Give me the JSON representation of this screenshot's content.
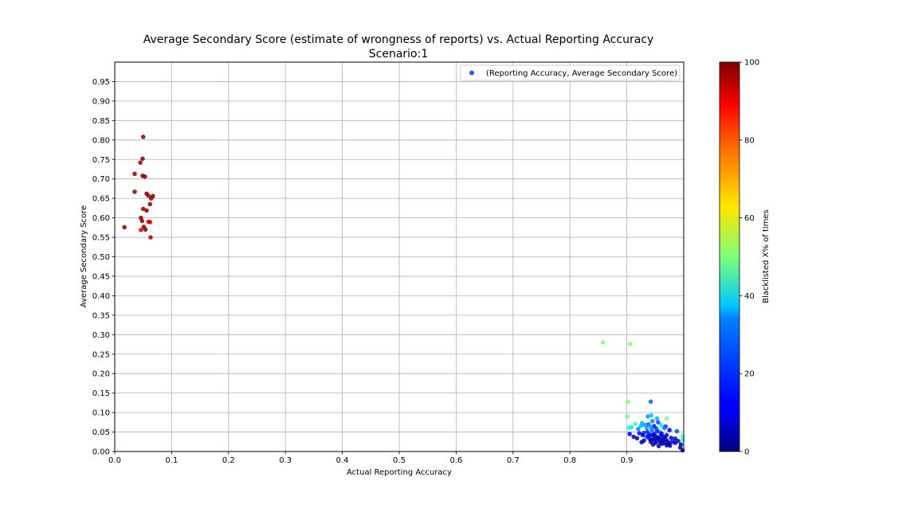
{
  "chart_data": {
    "type": "scatter",
    "title_line1": "Average Secondary Score (estimate of wrongness of reports) vs. Actual Reporting Accuracy",
    "title_line2": "Scenario:1",
    "xlabel": "Actual Reporting Accuracy",
    "ylabel": "Average Secondary Score",
    "xlim": [
      0.0,
      1.0
    ],
    "ylim": [
      0.0,
      1.0
    ],
    "xticks": [
      "0.0",
      "0.1",
      "0.2",
      "0.3",
      "0.4",
      "0.5",
      "0.6",
      "0.7",
      "0.8",
      "0.9"
    ],
    "yticks": [
      "0.00",
      "0.05",
      "0.10",
      "0.15",
      "0.20",
      "0.25",
      "0.30",
      "0.35",
      "0.40",
      "0.45",
      "0.50",
      "0.55",
      "0.60",
      "0.65",
      "0.70",
      "0.75",
      "0.80",
      "0.85",
      "0.90",
      "0.95"
    ],
    "grid": true,
    "legend": {
      "position": "top-right",
      "label": "(Reporting Accuracy, Average Secondary Score)"
    },
    "colorbar": {
      "label": "Blacklisted X% of times",
      "min": 0,
      "max": 100,
      "ticks": [
        "0",
        "20",
        "40",
        "60",
        "80",
        "100"
      ],
      "colormap": "jet"
    },
    "series": [
      {
        "points": [
          [
            0.05,
            0.808,
            99
          ],
          [
            0.049,
            0.752,
            99
          ],
          [
            0.045,
            0.742,
            99
          ],
          [
            0.035,
            0.713,
            99
          ],
          [
            0.049,
            0.708,
            99
          ],
          [
            0.053,
            0.706,
            99
          ],
          [
            0.035,
            0.667,
            99
          ],
          [
            0.056,
            0.662,
            99
          ],
          [
            0.059,
            0.657,
            99
          ],
          [
            0.067,
            0.656,
            99
          ],
          [
            0.064,
            0.65,
            99
          ],
          [
            0.062,
            0.635,
            99
          ],
          [
            0.05,
            0.623,
            99
          ],
          [
            0.056,
            0.619,
            99
          ],
          [
            0.046,
            0.6,
            99
          ],
          [
            0.048,
            0.592,
            99
          ],
          [
            0.059,
            0.59,
            88
          ],
          [
            0.062,
            0.589,
            95
          ],
          [
            0.017,
            0.576,
            99
          ],
          [
            0.051,
            0.577,
            99
          ],
          [
            0.046,
            0.569,
            92
          ],
          [
            0.054,
            0.57,
            99
          ],
          [
            0.063,
            0.55,
            95
          ],
          [
            0.858,
            0.28,
            50
          ],
          [
            0.906,
            0.276,
            50
          ],
          [
            0.902,
            0.128,
            50
          ],
          [
            0.942,
            0.128,
            22
          ],
          [
            0.901,
            0.09,
            48
          ],
          [
            0.943,
            0.093,
            33
          ],
          [
            0.937,
            0.09,
            28
          ],
          [
            0.97,
            0.085,
            50
          ],
          [
            0.953,
            0.085,
            30
          ],
          [
            0.955,
            0.075,
            20
          ],
          [
            0.915,
            0.071,
            45
          ],
          [
            0.945,
            0.078,
            25
          ],
          [
            0.96,
            0.068,
            35
          ],
          [
            0.925,
            0.066,
            30
          ],
          [
            0.932,
            0.068,
            28
          ],
          [
            0.938,
            0.07,
            22
          ],
          [
            0.948,
            0.065,
            10
          ],
          [
            0.903,
            0.061,
            40
          ],
          [
            0.908,
            0.062,
            35
          ],
          [
            0.92,
            0.058,
            25
          ],
          [
            0.935,
            0.06,
            28
          ],
          [
            0.952,
            0.059,
            20
          ],
          [
            0.968,
            0.064,
            15
          ],
          [
            0.975,
            0.055,
            8
          ],
          [
            0.988,
            0.052,
            20
          ],
          [
            0.958,
            0.05,
            25
          ],
          [
            0.93,
            0.048,
            18
          ],
          [
            0.922,
            0.047,
            12
          ],
          [
            0.905,
            0.045,
            8
          ],
          [
            0.912,
            0.038,
            6
          ],
          [
            0.94,
            0.044,
            15
          ],
          [
            0.945,
            0.042,
            10
          ],
          [
            0.95,
            0.04,
            6
          ],
          [
            0.96,
            0.041,
            12
          ],
          [
            0.965,
            0.038,
            5
          ],
          [
            0.97,
            0.042,
            8
          ],
          [
            0.978,
            0.035,
            6
          ],
          [
            0.985,
            0.033,
            5
          ],
          [
            0.935,
            0.037,
            20
          ],
          [
            0.94,
            0.033,
            10
          ],
          [
            0.944,
            0.03,
            6
          ],
          [
            0.948,
            0.032,
            4
          ],
          [
            0.952,
            0.028,
            5
          ],
          [
            0.956,
            0.034,
            8
          ],
          [
            0.96,
            0.03,
            4
          ],
          [
            0.964,
            0.028,
            3
          ],
          [
            0.968,
            0.032,
            6
          ],
          [
            0.972,
            0.026,
            4
          ],
          [
            0.93,
            0.028,
            4
          ],
          [
            0.926,
            0.024,
            5
          ],
          [
            0.942,
            0.025,
            3
          ],
          [
            0.95,
            0.022,
            4
          ],
          [
            0.958,
            0.024,
            6
          ],
          [
            0.962,
            0.02,
            3
          ],
          [
            0.966,
            0.022,
            5
          ],
          [
            0.974,
            0.02,
            3
          ],
          [
            0.98,
            0.025,
            8
          ],
          [
            0.99,
            0.027,
            6
          ],
          [
            0.995,
            0.018,
            3
          ],
          [
            0.985,
            0.022,
            4
          ],
          [
            0.976,
            0.015,
            5
          ],
          [
            0.97,
            0.016,
            3
          ],
          [
            0.946,
            0.018,
            4
          ],
          [
            0.954,
            0.036,
            6
          ],
          [
            0.938,
            0.04,
            12
          ],
          [
            0.928,
            0.042,
            5
          ],
          [
            0.918,
            0.034,
            4
          ],
          [
            0.956,
            0.014,
            4
          ],
          [
            0.948,
            0.045,
            8
          ],
          [
            0.961,
            0.046,
            12
          ],
          [
            0.953,
            0.052,
            15
          ],
          [
            0.944,
            0.055,
            22
          ],
          [
            0.936,
            0.05,
            16
          ],
          [
            0.998,
            0.04,
            45
          ],
          [
            0.998,
            0.03,
            40
          ],
          [
            0.998,
            0.003,
            5
          ],
          [
            0.994,
            0.01,
            6
          ],
          [
            0.943,
            0.063,
            27
          ],
          [
            0.927,
            0.073,
            30
          ],
          [
            0.966,
            0.06,
            25
          ]
        ]
      }
    ]
  }
}
